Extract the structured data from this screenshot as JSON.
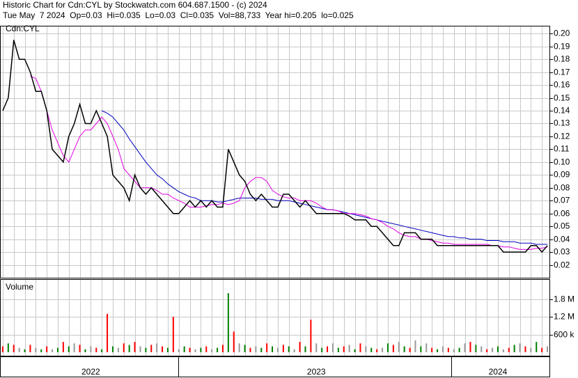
{
  "chart_data": {
    "type": "stock",
    "title": "Historic Chart for Cdn:CYL by Stockwatch.com 604.687.1500 - (c) 2024",
    "subtitle": "Tue May  7 2024  Op=0.03  Hi=0.035  Lo=0.03  Cl=0.035  Vol=88,733  Year hi=0.205  lo=0.025",
    "categories": [
      null,
      null,
      null,
      null,
      null,
      null,
      null,
      null,
      null,
      null,
      null,
      null,
      null,
      null,
      null,
      null,
      "2022",
      null,
      null,
      null,
      null,
      null,
      null,
      null,
      null,
      null,
      null,
      null,
      null,
      null,
      null,
      null,
      null,
      null,
      null,
      null,
      null,
      null,
      null,
      null,
      null,
      null,
      null,
      null,
      null,
      null,
      null,
      null,
      null,
      null,
      null,
      null,
      null,
      null,
      null,
      null,
      null,
      "2023",
      null,
      null,
      null,
      null,
      null,
      null,
      null,
      null,
      null,
      null,
      null,
      null,
      null,
      null,
      null,
      null,
      null,
      null,
      null,
      null,
      null,
      null,
      null,
      null,
      null,
      null,
      null,
      null,
      null,
      null,
      null,
      null,
      "2024",
      null,
      null,
      null,
      null,
      null,
      null,
      null,
      null,
      null
    ],
    "ylim": [
      0.01,
      0.205
    ],
    "yticks": [
      0.02,
      0.03,
      0.04,
      0.05,
      0.06,
      0.07,
      0.08,
      0.09,
      {
        "value": 0.1,
        "label": "0.10"
      },
      0.11,
      0.12,
      0.13,
      0.14,
      0.15,
      0.16,
      0.17,
      0.18,
      0.19,
      {
        "value": 0.2,
        "label": "0.20"
      }
    ],
    "grid": true,
    "series": [
      {
        "name": "Cdn:CYL",
        "color": "#000000",
        "values": [
          0.14,
          0.15,
          0.195,
          0.18,
          0.18,
          0.17,
          0.155,
          0.155,
          0.14,
          0.11,
          0.105,
          0.1,
          0.12,
          0.13,
          0.145,
          0.13,
          0.13,
          0.14,
          0.13,
          0.12,
          0.09,
          0.085,
          0.08,
          0.07,
          0.09,
          0.08,
          0.075,
          0.08,
          0.075,
          0.07,
          0.065,
          0.06,
          0.06,
          0.065,
          0.07,
          0.065,
          0.07,
          0.065,
          0.07,
          0.065,
          0.065,
          0.11,
          0.1,
          0.09,
          0.085,
          0.075,
          0.07,
          0.075,
          0.07,
          0.065,
          0.065,
          0.075,
          0.075,
          0.07,
          0.065,
          0.07,
          0.065,
          0.06,
          0.06,
          0.06,
          0.06,
          0.06,
          0.06,
          0.058,
          0.055,
          0.055,
          0.055,
          0.05,
          0.05,
          0.045,
          0.04,
          0.035,
          0.035,
          0.045,
          0.045,
          0.045,
          0.04,
          0.04,
          0.04,
          0.035,
          0.035,
          0.035,
          0.035,
          0.035,
          0.035,
          0.035,
          0.035,
          0.035,
          0.035,
          0.035,
          0.035,
          0.03,
          0.03,
          0.03,
          0.03,
          0.03,
          0.035,
          0.035,
          0.03,
          0.035
        ]
      },
      {
        "color": "#e000e0",
        "values": [
          null,
          null,
          null,
          null,
          null,
          0.167,
          0.165,
          0.155,
          0.14,
          0.125,
          0.115,
          0.105,
          0.1,
          0.11,
          0.12,
          0.125,
          0.125,
          0.13,
          0.135,
          0.13,
          0.12,
          0.11,
          0.095,
          0.09,
          0.085,
          0.08,
          0.08,
          0.08,
          0.078,
          0.075,
          0.075,
          0.072,
          0.07,
          0.068,
          0.065,
          0.065,
          0.065,
          0.066,
          0.067,
          0.067,
          0.068,
          0.067,
          0.068,
          0.07,
          0.08,
          0.085,
          0.088,
          0.088,
          0.085,
          0.078,
          0.075,
          0.073,
          0.072,
          0.072,
          0.07,
          0.07,
          0.07,
          0.068,
          0.065,
          0.063,
          0.063,
          0.062,
          0.06,
          0.06,
          0.06,
          0.059,
          0.058,
          0.056,
          0.055,
          0.053,
          0.05,
          0.048,
          0.045,
          0.043,
          0.042,
          0.042,
          0.04,
          0.04,
          0.039,
          0.038,
          0.037,
          0.037,
          0.036,
          0.036,
          0.036,
          0.036,
          0.036,
          0.036,
          0.036,
          0.035,
          0.035,
          0.034,
          0.034,
          0.033,
          0.032,
          0.032,
          0.032,
          0.033,
          0.033,
          0.034
        ]
      },
      {
        "color": "#0000c0",
        "values": [
          null,
          null,
          null,
          null,
          null,
          null,
          null,
          null,
          null,
          null,
          null,
          null,
          null,
          null,
          null,
          null,
          null,
          null,
          0.14,
          0.138,
          0.135,
          0.13,
          0.125,
          0.118,
          0.112,
          0.106,
          0.1,
          0.095,
          0.09,
          0.087,
          0.083,
          0.08,
          0.077,
          0.075,
          0.073,
          0.072,
          0.07,
          0.07,
          0.07,
          0.069,
          0.069,
          0.07,
          0.071,
          0.072,
          0.072,
          0.072,
          0.072,
          0.071,
          0.071,
          0.071,
          0.07,
          0.07,
          0.07,
          0.069,
          0.068,
          0.067,
          0.066,
          0.065,
          0.064,
          0.063,
          0.063,
          0.062,
          0.061,
          0.06,
          0.059,
          0.058,
          0.057,
          0.056,
          0.055,
          0.054,
          0.053,
          0.052,
          0.051,
          0.05,
          0.049,
          0.048,
          0.047,
          0.046,
          0.045,
          0.044,
          0.043,
          0.042,
          0.042,
          0.041,
          0.041,
          0.04,
          0.04,
          0.04,
          0.039,
          0.039,
          0.039,
          0.038,
          0.038,
          0.038,
          0.037,
          0.037,
          0.037,
          0.036,
          0.036,
          0.036
        ]
      }
    ],
    "volume": {
      "name": "Volume",
      "ylim": [
        0,
        2450000
      ],
      "yticks": [
        {
          "value": 600000,
          "label": "600 k"
        },
        {
          "value": 1200000,
          "label": "1.2 M"
        },
        {
          "value": 1800000,
          "label": "1.8 M"
        }
      ],
      "values": [
        200000,
        300000,
        250000,
        150000,
        100000,
        250000,
        150000,
        100000,
        200000,
        100000,
        150000,
        350000,
        200000,
        300000,
        250000,
        100000,
        200000,
        150000,
        100000,
        1300000,
        200000,
        150000,
        300000,
        250000,
        350000,
        200000,
        150000,
        250000,
        300000,
        200000,
        150000,
        1200000,
        100000,
        200000,
        150000,
        100000,
        150000,
        200000,
        100000,
        150000,
        250000,
        2000000,
        700000,
        300000,
        250000,
        150000,
        200000,
        150000,
        300000,
        200000,
        150000,
        250000,
        200000,
        100000,
        350000,
        200000,
        1100000,
        300000,
        150000,
        200000,
        300000,
        150000,
        200000,
        250000,
        100000,
        300000,
        200000,
        150000,
        100000,
        150000,
        300000,
        250000,
        350000,
        200000,
        150000,
        400000,
        200000,
        300000,
        150000,
        100000,
        200000,
        150000,
        100000,
        150000,
        300000,
        350000,
        250000,
        200000,
        100000,
        150000,
        200000,
        100000,
        150000,
        250000,
        300000,
        200000,
        150000,
        350000,
        150000,
        200000
      ],
      "colors": [
        "red",
        "green",
        "red",
        "#999",
        "green",
        "red",
        "#999",
        "green",
        "red",
        "#999",
        "green",
        "red",
        "green",
        "#999",
        "red",
        "green",
        "#999",
        "red",
        "green",
        "red",
        "green",
        "#999",
        "red",
        "green",
        "red",
        "#999",
        "green",
        "red",
        "#999",
        "red",
        "green",
        "red",
        "#999",
        "green",
        "red",
        "#999",
        "green",
        "red",
        "#999",
        "green",
        "red",
        "green",
        "red",
        "#999",
        "green",
        "red",
        "#999",
        "green",
        "red",
        "green",
        "#999",
        "red",
        "green",
        "#999",
        "red",
        "green",
        "red",
        "#999",
        "green",
        "red",
        "#999",
        "green",
        "red",
        "#999",
        "green",
        "red",
        "#999",
        "green",
        "red",
        "#999",
        "green",
        "red",
        "#999",
        "green",
        "red",
        "#999",
        "green",
        "#999",
        "red",
        "green",
        "#999",
        "red",
        "#999",
        "green",
        "#999",
        "red",
        "green",
        "#999",
        "red",
        "#999",
        "green",
        "#999",
        "red",
        "green",
        "#999",
        "red",
        "#999",
        "green",
        "red",
        "#999"
      ]
    }
  }
}
